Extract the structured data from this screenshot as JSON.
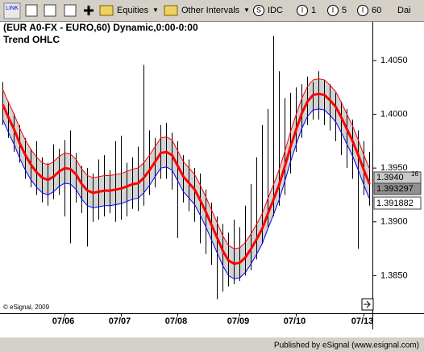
{
  "toolbar": {
    "link": "LINK",
    "menus": [
      "Equities",
      "Other Intervals"
    ],
    "buttons": [
      {
        "icon": "S",
        "label": "IDC"
      },
      {
        "icon": "I",
        "label": "1"
      },
      {
        "icon": "I",
        "label": "5"
      },
      {
        "icon": "I",
        "label": "60"
      }
    ],
    "overflow": "Dai"
  },
  "chart_data": {
    "type": "ohlc",
    "title": "(EUR A0-FX - EURO,60) Dynamic,0:00-0:00",
    "subtitle": "Trend OHLC",
    "categories": [
      null,
      null,
      null,
      null,
      null,
      null,
      null,
      null,
      null,
      null,
      null,
      "07/06",
      null,
      null,
      null,
      null,
      null,
      null,
      null,
      null,
      null,
      "07/07",
      null,
      null,
      null,
      null,
      null,
      null,
      null,
      null,
      null,
      "07/08",
      null,
      null,
      null,
      null,
      null,
      null,
      null,
      null,
      null,
      null,
      "07/09",
      null,
      null,
      null,
      null,
      null,
      null,
      null,
      null,
      null,
      "07/10",
      null,
      null,
      null,
      null,
      null,
      null,
      null,
      null,
      null,
      null,
      null,
      "07/13",
      null
    ],
    "high": [
      1.403,
      1.4012,
      1.4001,
      1.399,
      1.3978,
      1.3968,
      1.3975,
      1.396,
      1.3955,
      1.3972,
      1.3968,
      1.3976,
      1.3985,
      1.3964,
      1.3952,
      1.395,
      1.3945,
      1.3958,
      1.3962,
      1.3948,
      1.3975,
      1.398,
      1.3955,
      1.396,
      1.397,
      1.4046,
      1.3985,
      1.3978,
      1.399,
      1.3992,
      1.3983,
      1.3975,
      1.3962,
      1.3958,
      1.395,
      1.3945,
      1.393,
      1.3918,
      1.3905,
      1.3898,
      1.389,
      1.3902,
      1.3895,
      1.3915,
      1.3935,
      1.396,
      1.399,
      1.4005,
      1.4073,
      1.404,
      1.4015,
      1.402,
      1.4025,
      1.4028,
      1.4035,
      1.403,
      1.404,
      1.4032,
      1.4028,
      1.402,
      1.4012,
      1.4005,
      1.3995,
      1.3985,
      1.3975,
      1.3965
    ],
    "low": [
      1.399,
      1.3978,
      1.3965,
      1.3955,
      1.394,
      1.3932,
      1.3925,
      1.3918,
      1.3915,
      1.3921,
      1.3925,
      1.3905,
      1.388,
      1.3918,
      1.3908,
      1.3877,
      1.39,
      1.3902,
      1.3905,
      1.3908,
      1.39,
      1.3902,
      1.3905,
      1.3912,
      1.391,
      1.3915,
      1.3925,
      1.3932,
      1.394,
      1.394,
      1.393,
      1.3885,
      1.3918,
      1.391,
      1.39,
      1.388,
      1.387,
      1.386,
      1.3828,
      1.3835,
      1.384,
      1.3842,
      1.3845,
      1.385,
      1.3855,
      1.3865,
      1.388,
      1.3895,
      1.3905,
      1.3915,
      1.3925,
      1.3945,
      1.3965,
      1.3978,
      1.399,
      1.3995,
      1.3995,
      1.399,
      1.3985,
      1.3975,
      1.3962,
      1.395,
      1.394,
      1.3875,
      1.3925,
      1.3915
    ],
    "trend": [
      1.4009,
      1.3997,
      1.3986,
      1.3973,
      1.3962,
      1.3953,
      1.3946,
      1.3941,
      1.3939,
      1.3942,
      1.3947,
      1.395,
      1.3949,
      1.3944,
      1.3935,
      1.3929,
      1.3927,
      1.3928,
      1.3929,
      1.3929,
      1.393,
      1.3931,
      1.3933,
      1.3935,
      1.3936,
      1.3941,
      1.3948,
      1.3956,
      1.3964,
      1.3965,
      1.3962,
      1.3952,
      1.3942,
      1.3936,
      1.393,
      1.392,
      1.3909,
      1.3897,
      1.3885,
      1.3873,
      1.3864,
      1.3861,
      1.3862,
      1.3867,
      1.3875,
      1.3884,
      1.3894,
      1.3908,
      1.3921,
      1.3935,
      1.3952,
      1.397,
      1.3986,
      1.4001,
      1.4012,
      1.4018,
      1.4019,
      1.4018,
      1.4013,
      1.4007,
      1.3997,
      1.3986,
      1.3975,
      1.3962,
      1.3948,
      1.3935
    ],
    "upper": [
      1.4023,
      1.4011,
      1.4,
      1.3987,
      1.3976,
      1.3967,
      1.396,
      1.3955,
      1.3953,
      1.3956,
      1.3961,
      1.3964,
      1.3963,
      1.3958,
      1.3949,
      1.3943,
      1.3941,
      1.3942,
      1.3943,
      1.3943,
      1.3944,
      1.3945,
      1.3947,
      1.3949,
      1.395,
      1.3955,
      1.3962,
      1.397,
      1.3978,
      1.3979,
      1.3976,
      1.3966,
      1.3956,
      1.395,
      1.3944,
      1.3934,
      1.3923,
      1.3911,
      1.3899,
      1.3887,
      1.3878,
      1.3875,
      1.3876,
      1.3881,
      1.3889,
      1.3898,
      1.3908,
      1.3922,
      1.3935,
      1.3949,
      1.3966,
      1.3984,
      1.4,
      1.4015,
      1.4026,
      1.4032,
      1.4033,
      1.4032,
      1.4027,
      1.4021,
      1.4011,
      1.4,
      1.3989,
      1.3976,
      1.3962,
      1.3949
    ],
    "lower": [
      1.3995,
      1.3983,
      1.3972,
      1.3959,
      1.3948,
      1.3939,
      1.3932,
      1.3927,
      1.3925,
      1.3928,
      1.3933,
      1.3936,
      1.3935,
      1.393,
      1.3921,
      1.3915,
      1.3913,
      1.3914,
      1.3915,
      1.3915,
      1.3916,
      1.3917,
      1.3919,
      1.3921,
      1.3922,
      1.3927,
      1.3934,
      1.3942,
      1.395,
      1.3951,
      1.3948,
      1.3938,
      1.3928,
      1.3922,
      1.3916,
      1.3906,
      1.3895,
      1.3883,
      1.3871,
      1.3859,
      1.385,
      1.3847,
      1.3848,
      1.3853,
      1.3861,
      1.387,
      1.388,
      1.3894,
      1.3907,
      1.3921,
      1.3938,
      1.3956,
      1.3972,
      1.3987,
      1.3998,
      1.4004,
      1.4005,
      1.4004,
      1.3999,
      1.3993,
      1.3983,
      1.3972,
      1.3961,
      1.3948,
      1.3934,
      1.3921
    ],
    "bar_color": "#000000",
    "trend_color": "#ff0000",
    "upper_color": "#ff0000",
    "lower_color": "#0000ff",
    "band_color": "#c0c0c0",
    "ylim": [
      1.3815,
      1.4086
    ],
    "yticks": [
      {
        "value": 1.385,
        "label": "1.3850"
      },
      {
        "value": 1.39,
        "label": "1.3900"
      },
      {
        "value": 1.395,
        "label": "1.3950"
      },
      {
        "value": 1.4,
        "label": "1.4000"
      },
      {
        "value": 1.405,
        "label": "1.4050"
      }
    ],
    "grid": false,
    "price_labels": [
      {
        "main": "1.3940",
        "sup": "16"
      },
      "1.393297",
      "1.391882"
    ],
    "watermark": "© eSignal, 2009"
  },
  "footer": "Published by eSignal (www.esignal.com)"
}
